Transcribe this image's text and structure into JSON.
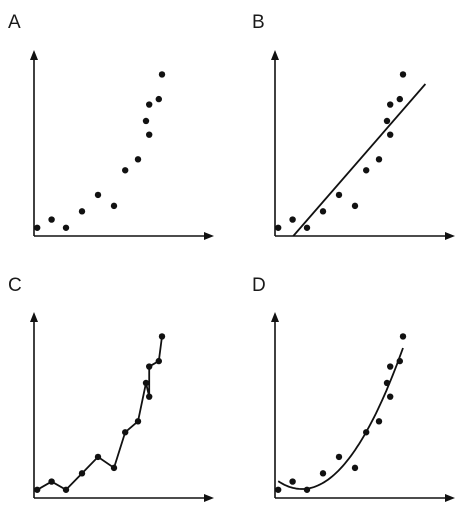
{
  "chart_data": [
    {
      "type": "scatter",
      "panel_label": "A",
      "title": "",
      "xlabel": "",
      "ylabel": "",
      "x": [
        0.2,
        1.1,
        2.0,
        3.0,
        4.0,
        5.0,
        5.7,
        6.5,
        7.0,
        7.2,
        7.2,
        7.8,
        8.0
      ],
      "y": [
        0.3,
        0.6,
        0.3,
        0.9,
        1.5,
        1.1,
        2.4,
        2.8,
        4.2,
        3.7,
        4.8,
        5.0,
        5.9
      ],
      "xlim": [
        0,
        10
      ],
      "ylim": [
        0,
        6.5
      ],
      "grid": false,
      "fit": "none"
    },
    {
      "type": "scatter",
      "panel_label": "B",
      "title": "",
      "xlabel": "",
      "ylabel": "",
      "x": [
        0.2,
        1.1,
        2.0,
        3.0,
        4.0,
        5.0,
        5.7,
        6.5,
        7.0,
        7.2,
        7.2,
        7.8,
        8.0
      ],
      "y": [
        0.3,
        0.6,
        0.3,
        0.9,
        1.5,
        1.1,
        2.4,
        2.8,
        4.2,
        3.7,
        4.8,
        5.0,
        5.9
      ],
      "xlim": [
        0,
        10
      ],
      "ylim": [
        0,
        6.5
      ],
      "grid": false,
      "fit": "linear"
    },
    {
      "type": "line",
      "panel_label": "C",
      "title": "",
      "xlabel": "",
      "ylabel": "",
      "x": [
        0.2,
        1.1,
        2.0,
        3.0,
        4.0,
        5.0,
        5.7,
        6.5,
        7.0,
        7.2,
        7.2,
        7.8,
        8.0
      ],
      "y": [
        0.3,
        0.6,
        0.3,
        0.9,
        1.5,
        1.1,
        2.4,
        2.8,
        4.2,
        3.7,
        4.8,
        5.0,
        5.9
      ],
      "xlim": [
        0,
        10
      ],
      "ylim": [
        0,
        6.5
      ],
      "grid": false,
      "fit": "none"
    },
    {
      "type": "scatter",
      "panel_label": "D",
      "title": "",
      "xlabel": "",
      "ylabel": "",
      "x": [
        0.2,
        1.1,
        2.0,
        3.0,
        4.0,
        5.0,
        5.7,
        6.5,
        7.0,
        7.2,
        7.2,
        7.8,
        8.0
      ],
      "y": [
        0.3,
        0.6,
        0.3,
        0.9,
        1.5,
        1.1,
        2.4,
        2.8,
        4.2,
        3.7,
        4.8,
        5.0,
        5.9
      ],
      "xlim": [
        0,
        10
      ],
      "ylim": [
        0,
        6.5
      ],
      "grid": false,
      "fit": "quadratic"
    }
  ]
}
